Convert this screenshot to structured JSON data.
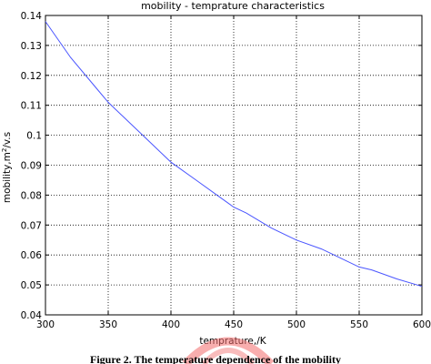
{
  "chart_data": {
    "type": "line",
    "title": "mobility - temprature characteristics",
    "xlabel": "temprature,/K",
    "ylabel_prefix": "mobility,m",
    "ylabel_sup": "2",
    "ylabel_suffix": "/v.s",
    "xlim": [
      300,
      600
    ],
    "ylim": [
      0.04,
      0.14
    ],
    "x_ticks": [
      "300",
      "350",
      "400",
      "450",
      "500",
      "550",
      "600"
    ],
    "y_ticks": [
      "0.04",
      "0.05",
      "0.06",
      "0.07",
      "0.08",
      "0.09",
      "0.1",
      "0.11",
      "0.12",
      "0.13",
      "0.14"
    ],
    "x_tick_values": [
      300,
      350,
      400,
      450,
      500,
      550,
      600
    ],
    "y_tick_values": [
      0.04,
      0.05,
      0.06,
      0.07,
      0.08,
      0.09,
      0.1,
      0.11,
      0.12,
      0.13,
      0.14
    ],
    "grid": true,
    "line_color": "#4a55ff",
    "series": [
      {
        "x": [
          300,
          320,
          340,
          350,
          360,
          380,
          400,
          420,
          440,
          450,
          460,
          480,
          500,
          520,
          540,
          550,
          560,
          580,
          600
        ],
        "values": [
          0.138,
          0.126,
          0.116,
          0.111,
          0.107,
          0.099,
          0.091,
          0.085,
          0.079,
          0.076,
          0.074,
          0.069,
          0.065,
          0.062,
          0.058,
          0.056,
          0.055,
          0.052,
          0.0495
        ]
      }
    ]
  },
  "caption": "Figure 2. The temperature dependence of the mobility",
  "watermark_color": "#f26b6b"
}
